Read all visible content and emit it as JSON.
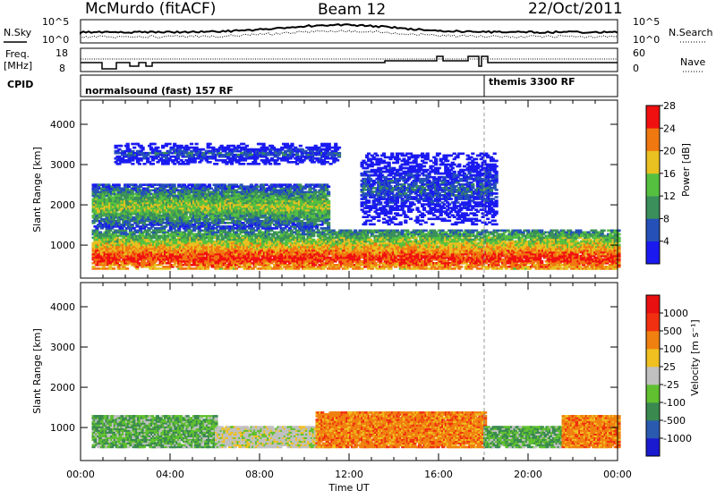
{
  "header": {
    "station": "McMurdo (fitACF)",
    "beam": "Beam 12",
    "date": "22/Oct/2011"
  },
  "noise_panel": {
    "left_label": "N.Sky",
    "right_label": "N.Search",
    "left_ticks": [
      "10^5",
      "10^0"
    ],
    "right_ticks": [
      "10^5",
      "10^0"
    ]
  },
  "freq_panel": {
    "left_label_1": "Freq.",
    "left_label_2": "[MHz]",
    "left_ticks": [
      "18",
      "8"
    ],
    "right_label": "Nave",
    "right_ticks": [
      "60",
      "0"
    ]
  },
  "cpid_panel": {
    "label": "CPID",
    "modes": [
      "normalsound (fast) 157 RF",
      "themis 3300 RF"
    ]
  },
  "chart_data": [
    {
      "type": "heatmap",
      "title": "",
      "xlabel": "",
      "ylabel": "Slant Range [km]",
      "xlim": [
        0,
        24
      ],
      "ylim": [
        180,
        4600
      ],
      "x_ticks": [
        0,
        4,
        8,
        12,
        16,
        20,
        24
      ],
      "y_ticks": [
        1000,
        2000,
        3000,
        4000
      ],
      "y_tick_labels": [
        "1000",
        "2000",
        "3000",
        "4000"
      ],
      "colorbar_label": "Power [dB]",
      "colorbar_ticks": [
        "4",
        "8",
        "12",
        "16",
        "20",
        "24",
        "28"
      ],
      "colorbar_colors": [
        "#1a1af0",
        "#2550b8",
        "#3a8f5a",
        "#55c040",
        "#e8c020",
        "#f07810",
        "#f01010"
      ],
      "echo_bands": [
        {
          "x": [
            0.5,
            24
          ],
          "range": [
            400,
            1350
          ],
          "peak_range": 650,
          "level": "high"
        },
        {
          "x": [
            0.5,
            11
          ],
          "range": [
            1400,
            2500
          ],
          "level": "medium"
        },
        {
          "x": [
            1.5,
            11.5
          ],
          "range": [
            3000,
            3500
          ],
          "level": "low"
        },
        {
          "x": [
            12.5,
            18.5
          ],
          "range": [
            1500,
            3300
          ],
          "level": "low"
        }
      ]
    },
    {
      "type": "heatmap",
      "title": "",
      "xlabel": "Time UT",
      "ylabel": "Slant Range [km]",
      "xlim": [
        0,
        24
      ],
      "ylim": [
        180,
        4600
      ],
      "x_ticks": [
        0,
        4,
        8,
        12,
        16,
        20,
        24
      ],
      "x_tick_labels": [
        "00:00",
        "04:00",
        "08:00",
        "12:00",
        "16:00",
        "20:00",
        "00:00"
      ],
      "y_ticks": [
        1000,
        2000,
        3000,
        4000
      ],
      "y_tick_labels": [
        "1000",
        "2000",
        "3000",
        "4000"
      ],
      "colorbar_label": "Velocity [m s⁻¹]",
      "colorbar_ticks": [
        "1000",
        "500",
        "100",
        "25",
        "-25",
        "-100",
        "-500",
        "-1000"
      ],
      "colorbar_colors": [
        "#1a1ad0",
        "#2a5ab0",
        "#3a8a50",
        "#60c030",
        "#c0c0c0",
        "#f0c020",
        "#f08010",
        "#f03010",
        "#e81010"
      ],
      "echo_bands": [
        {
          "x": [
            0.5,
            6
          ],
          "range": [
            500,
            1300
          ],
          "velocity": "positive"
        },
        {
          "x": [
            6,
            10.5
          ],
          "range": [
            500,
            1000
          ],
          "velocity": "near-zero"
        },
        {
          "x": [
            10.5,
            18
          ],
          "range": [
            500,
            1400
          ],
          "velocity": "negative"
        },
        {
          "x": [
            18,
            21.5
          ],
          "range": [
            500,
            1000
          ],
          "velocity": "positive"
        },
        {
          "x": [
            21.5,
            24
          ],
          "range": [
            500,
            1300
          ],
          "velocity": "negative"
        }
      ]
    }
  ]
}
